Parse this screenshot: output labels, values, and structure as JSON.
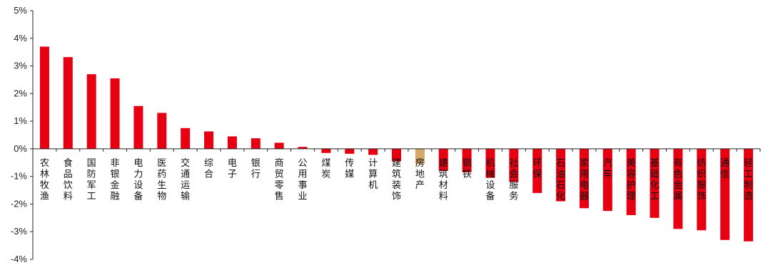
{
  "chart_data": {
    "type": "bar",
    "title": "",
    "xlabel": "",
    "ylabel": "",
    "ylim": [
      -4,
      5
    ],
    "yticks": [
      -4,
      -3,
      -2,
      -1,
      0,
      1,
      2,
      3,
      4,
      5
    ],
    "ytick_labels": [
      "-4%",
      "-3%",
      "-2%",
      "-1%",
      "0%",
      "1%",
      "2%",
      "3%",
      "4%",
      "5%"
    ],
    "grid": false,
    "legend": "none",
    "categories": [
      "农林牧渔",
      "食品饮料",
      "国防军工",
      "非银金融",
      "电力设备",
      "医药生物",
      "交通运输",
      "综合",
      "电子",
      "银行",
      "商贸零售",
      "公用事业",
      "煤炭",
      "传媒",
      "计算机",
      "建筑装饰",
      "房地产",
      "建筑材料",
      "钢铁",
      "机械设备",
      "社会服务",
      "环保",
      "石油石化",
      "家用电器",
      "汽车",
      "美容护理",
      "基础化工",
      "有色金属",
      "纺织服饰",
      "通信",
      "轻工制造"
    ],
    "values": [
      3.7,
      3.32,
      2.7,
      2.55,
      1.55,
      1.3,
      0.75,
      0.63,
      0.45,
      0.38,
      0.22,
      0.07,
      -0.15,
      -0.18,
      -0.22,
      -0.45,
      -0.55,
      -0.8,
      -0.85,
      -1.05,
      -1.2,
      -1.6,
      -1.9,
      -2.15,
      -2.25,
      -2.4,
      -2.5,
      -2.9,
      -2.95,
      -3.3,
      -3.35
    ],
    "colors": {
      "default": "#e60012",
      "highlight": "#d4a76a",
      "highlight_category": "房地产"
    }
  }
}
